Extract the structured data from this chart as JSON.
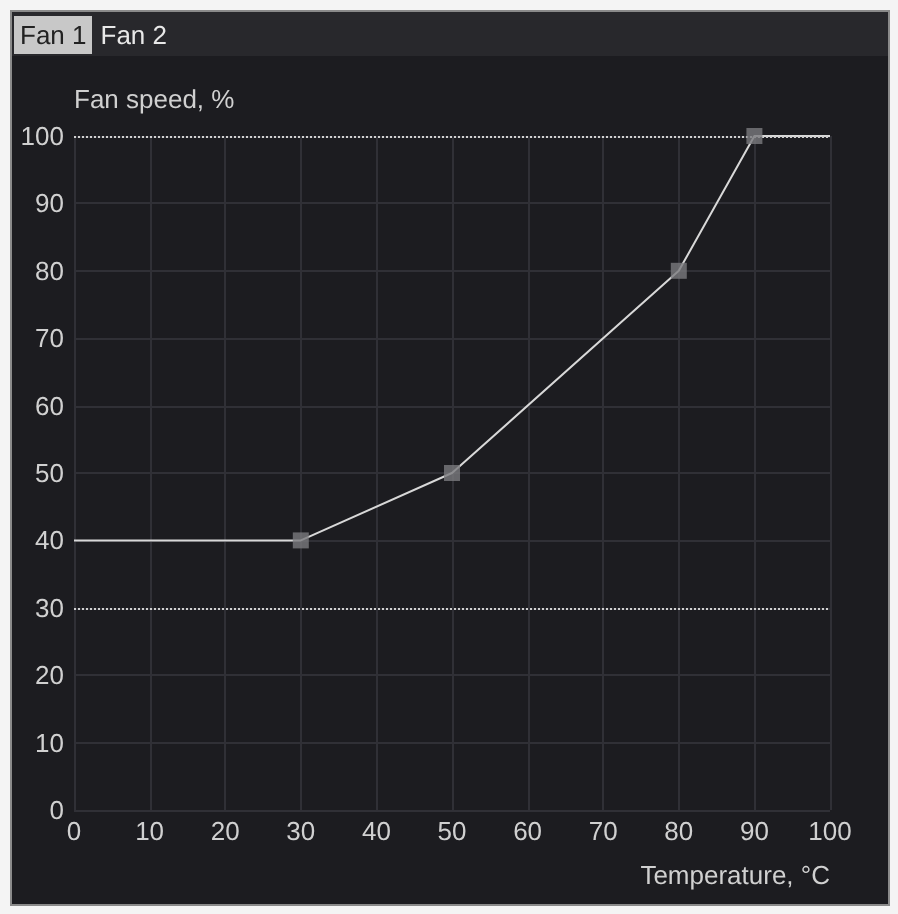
{
  "chart_data": {
    "type": "line",
    "xlabel": "Temperature, °C",
    "ylabel": "Fan speed, %",
    "annotations": [
      "Fan 1",
      "Fan 2"
    ],
    "series": [
      {
        "color": "#d8d8d8",
        "x": [
          0,
          30,
          50,
          80,
          90,
          100
        ],
        "values": [
          40,
          40,
          50,
          80,
          100,
          100
        ],
        "marker": "none",
        "line_style": "solid"
      },
      {
        "type": "scatter",
        "color": "#7a7a7e",
        "x": [
          30,
          50,
          80,
          90
        ],
        "values": [
          40,
          50,
          80,
          100
        ],
        "marker": "square"
      }
    ],
    "xlim": [
      0,
      100
    ],
    "xticks": [
      0,
      10,
      20,
      30,
      40,
      50,
      60,
      70,
      80,
      90,
      100
    ],
    "ylim": [
      0,
      100
    ],
    "yticks": [
      0,
      10,
      20,
      30,
      40,
      50,
      60,
      70,
      80,
      90,
      100
    ],
    "grid": true,
    "ref_lines": [
      {
        "axis": "y",
        "value": 30,
        "label": null,
        "color": "#d0d0d0",
        "line_style": "dotted"
      },
      {
        "axis": "y",
        "value": 100,
        "label": null,
        "color": "#d0d0d0",
        "line_style": "dotted"
      }
    ]
  }
}
